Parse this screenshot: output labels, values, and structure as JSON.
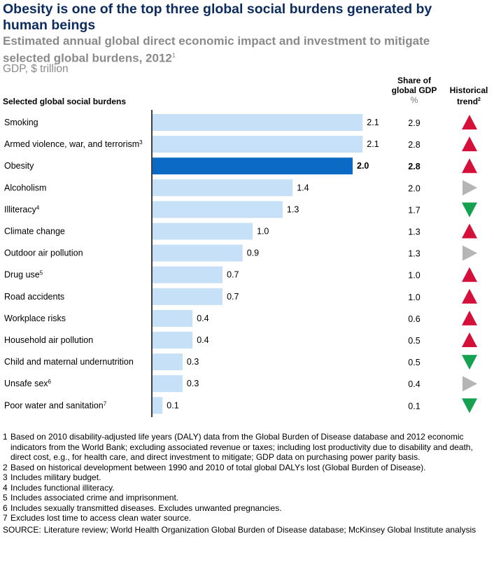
{
  "chart_data": {
    "type": "bar",
    "title": "Obesity is one of the top three global social burdens generated by human beings",
    "subtitle": "Estimated annual global direct economic impact and investment to mitigate selected global burdens, 2012",
    "subtitle_sup": "1",
    "unit": "GDP, $ trillion",
    "category_header": "Selected global social burdens",
    "share_header": [
      "Share of",
      "global GDP",
      "%"
    ],
    "trend_header": "Historical trend",
    "trend_header_sup": "2",
    "highlight": "Obesity",
    "colors": {
      "bar": "#c5e0f7",
      "highlight": "#0b6bc4",
      "up": "#d4103a",
      "flat": "#b5b5b5",
      "down": "#14a150"
    },
    "xlim": [
      0,
      2.1
    ],
    "categories": [
      {
        "label": "Smoking",
        "sup": "",
        "value": 2.1,
        "value_label": "2.1",
        "share": "2.9",
        "trend": "up"
      },
      {
        "label": "Armed violence, war, and terrorism",
        "sup": "3",
        "value": 2.1,
        "value_label": "2.1",
        "share": "2.8",
        "trend": "up"
      },
      {
        "label": "Obesity",
        "sup": "",
        "value": 2.0,
        "value_label": "2.0",
        "share": "2.8",
        "trend": "up"
      },
      {
        "label": "Alcoholism",
        "sup": "",
        "value": 1.4,
        "value_label": "1.4",
        "share": "2.0",
        "trend": "flat"
      },
      {
        "label": "Illiteracy",
        "sup": "4",
        "value": 1.3,
        "value_label": "1.3",
        "share": "1.7",
        "trend": "down"
      },
      {
        "label": "Climate change",
        "sup": "",
        "value": 1.0,
        "value_label": "1.0",
        "share": "1.3",
        "trend": "up"
      },
      {
        "label": "Outdoor air pollution",
        "sup": "",
        "value": 0.9,
        "value_label": "0.9",
        "share": "1.3",
        "trend": "flat"
      },
      {
        "label": "Drug use",
        "sup": "5",
        "value": 0.7,
        "value_label": "0.7",
        "share": "1.0",
        "trend": "up"
      },
      {
        "label": "Road accidents",
        "sup": "",
        "value": 0.7,
        "value_label": "0.7",
        "share": "1.0",
        "trend": "up"
      },
      {
        "label": "Workplace risks",
        "sup": "",
        "value": 0.4,
        "value_label": "0.4",
        "share": "0.6",
        "trend": "up"
      },
      {
        "label": "Household air pollution",
        "sup": "",
        "value": 0.4,
        "value_label": "0.4",
        "share": "0.5",
        "trend": "up"
      },
      {
        "label": "Child and maternal undernutrition",
        "sup": "",
        "value": 0.3,
        "value_label": "0.3",
        "share": "0.5",
        "trend": "down"
      },
      {
        "label": "Unsafe sex",
        "sup": "6",
        "value": 0.3,
        "value_label": "0.3",
        "share": "0.4",
        "trend": "flat"
      },
      {
        "label": "Poor water and sanitation",
        "sup": "7",
        "value": 0.1,
        "value_label": "0.1",
        "share": "0.1",
        "trend": "down"
      }
    ]
  },
  "footnotes": [
    {
      "n": "1",
      "text": "Based on 2010 disability-adjusted life years (DALY) data from the Global Burden of Disease database and 2012 economic indicators from the World Bank; excluding associated revenue or taxes; including lost productivity due to disability and death, direct cost, e.g., for health care, and direct investment to mitigate; GDP data on purchasing power parity basis."
    },
    {
      "n": "2",
      "text": "Based on historical development between 1990 and 2010 of total global DALYs lost (Global Burden of Disease)."
    },
    {
      "n": "3",
      "text": "Includes military budget."
    },
    {
      "n": "4",
      "text": "Includes functional illiteracy."
    },
    {
      "n": "5",
      "text": "Includes associated crime and imprisonment."
    },
    {
      "n": "6",
      "text": "Includes sexually transmitted diseases. Excludes unwanted pregnancies."
    },
    {
      "n": "7",
      "text": "Excludes lost time to access clean water source."
    }
  ],
  "source": {
    "label": "SOURCE:",
    "text": "Literature review; World Health Organization Global Burden of Disease database; McKinsey Global Institute analysis"
  }
}
